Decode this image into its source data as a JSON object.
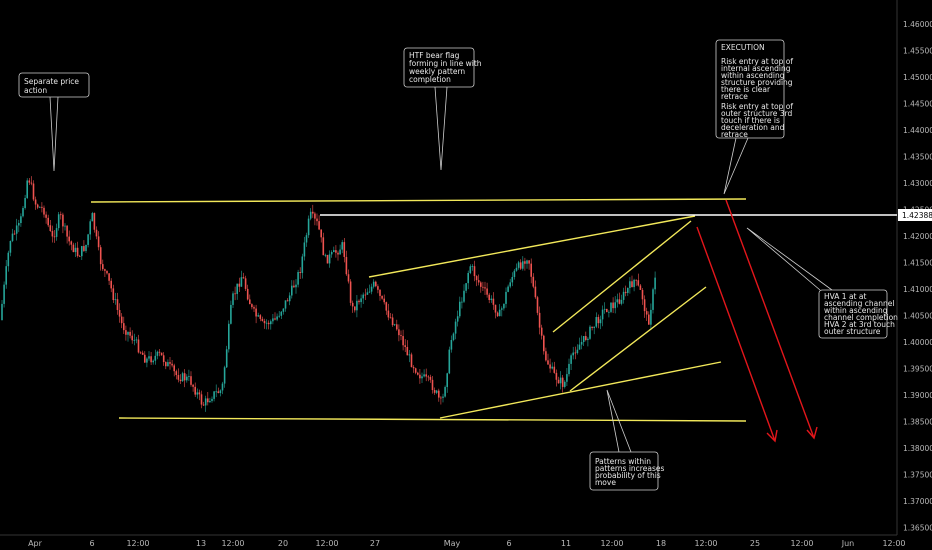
{
  "chart_data": {
    "type": "candlestick",
    "y_axis": {
      "ticks": [
        "1.46000",
        "1.45500",
        "1.45000",
        "1.44500",
        "1.44000",
        "1.43500",
        "1.43000",
        "1.42500",
        "1.42000",
        "1.41500",
        "1.41000",
        "1.40500",
        "1.40000",
        "1.39500",
        "1.39000",
        "1.38500",
        "1.38000",
        "1.37500",
        "1.37000",
        "1.36500"
      ],
      "ylim": [
        1.3635,
        1.4635
      ],
      "current_price": "1.42388"
    },
    "x_axis": {
      "ticks": [
        "Apr",
        "6",
        "12:00",
        "13",
        "12:00",
        "20",
        "12:00",
        "27",
        "May",
        "6",
        "11",
        "12:00",
        "18",
        "12:00",
        "25",
        "12:00",
        "Jun",
        "12:00"
      ]
    },
    "annotations": [
      {
        "id": "separate",
        "lines": [
          "Separate price",
          "action"
        ]
      },
      {
        "id": "htf",
        "lines": [
          "HTF bear flag",
          "forming in line with",
          "weekly pattern",
          "completion"
        ]
      },
      {
        "id": "execution",
        "lines": [
          "EXECUTION",
          "",
          "Risk entry at top of",
          "internal ascending",
          "within ascending",
          "structure providing",
          "there is clear",
          "retrace",
          "",
          "Risk entry at top of",
          "outer structure 3rd",
          "touch if there is",
          "deceleration and",
          "retrace"
        ]
      },
      {
        "id": "hva",
        "lines": [
          "HVA 1 at at",
          "ascending channel",
          "within ascending",
          "channel completion",
          "HVA 2 at 3rd touch",
          "outer structure"
        ]
      },
      {
        "id": "patterns",
        "lines": [
          "Patterns within",
          "patterns increases",
          "probability of this",
          "move"
        ]
      }
    ],
    "lines": [
      {
        "name": "top",
        "color": "#f2e85a",
        "p1": {
          "x": "6",
          "y": 1.4265
        },
        "p2": {
          "x": "24",
          "y": 1.4268
        }
      },
      {
        "name": "bottom",
        "color": "#f2e85a",
        "p1": {
          "x": "7",
          "y": 1.3855
        },
        "p2": {
          "x": "24",
          "y": 1.3848
        }
      }
    ],
    "colors": {
      "background": "#000000",
      "structure": "#f2e85a",
      "level": "#ffffff",
      "projection": "#e3161b",
      "up": "#26a69a",
      "down": "#ef5350"
    }
  }
}
